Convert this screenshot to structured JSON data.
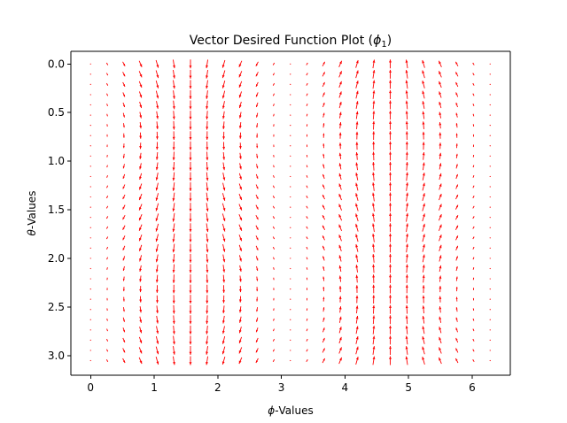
{
  "chart_data": {
    "type": "quiver",
    "title_main": "Vector Desired Function Plot (",
    "title_symbol": "ϕ",
    "title_subscript": "1",
    "title_close": ")",
    "xlabel_symbol": "ϕ",
    "xlabel_rest": "-Values",
    "ylabel_symbol": "θ",
    "ylabel_rest": "-Values",
    "xlim": [
      -0.31,
      6.6
    ],
    "ylim": [
      3.2,
      -0.13
    ],
    "y_inverted": true,
    "x_ticks": [
      0,
      1,
      2,
      3,
      4,
      5,
      6
    ],
    "x_tick_labels": [
      "0",
      "1",
      "2",
      "3",
      "4",
      "5",
      "6"
    ],
    "y_ticks": [
      0.0,
      0.5,
      1.0,
      1.5,
      2.0,
      2.5,
      3.0
    ],
    "y_tick_labels": [
      "0.0",
      "0.5",
      "1.0",
      "1.5",
      "2.0",
      "2.5",
      "3.0"
    ],
    "grid": false,
    "arrow_color": "#ff0000",
    "field": {
      "phi_start": 0.0,
      "phi_end": 6.283,
      "phi_count": 25,
      "theta_start": 0.0,
      "theta_end": 3.05,
      "theta_count": 30,
      "u_expression": "0.3*sin(2*phi)*cos(2*theta)",
      "v_expression": "sin(phi)"
    }
  }
}
